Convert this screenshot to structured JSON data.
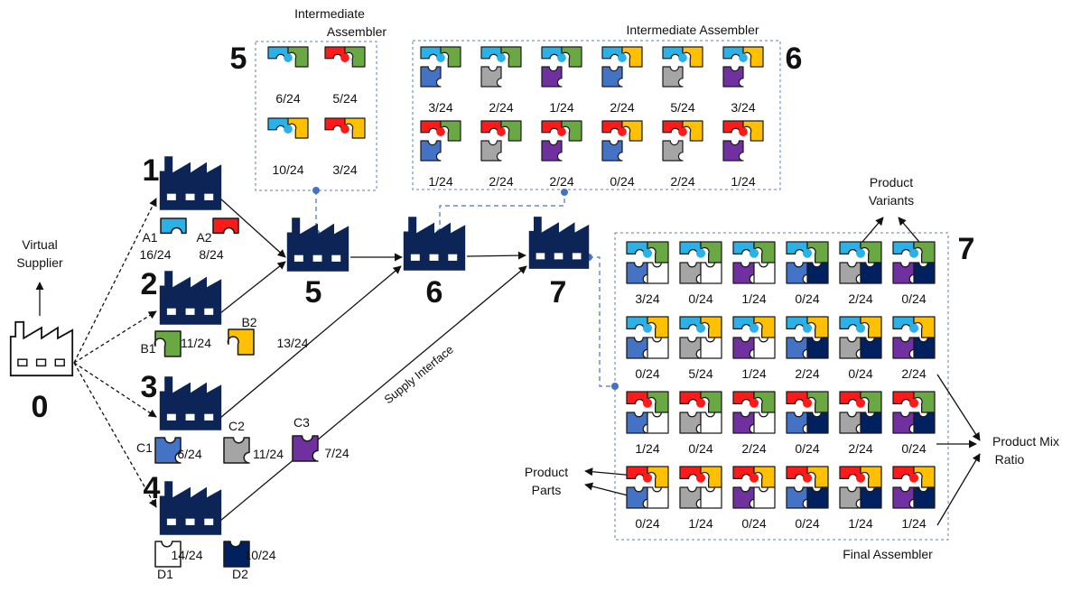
{
  "colors": {
    "navy": "#0d2456",
    "A1": "#29b1e8",
    "A2": "#ff1a1a",
    "B1": "#6aa843",
    "B2": "#ffc000",
    "C1": "#4472c4",
    "C2": "#a5a5a5",
    "C3": "#7030a0",
    "D1": "#ffffff",
    "D2": "#002060",
    "dashed_box": "#5b7fb5",
    "connector": "#4472c4"
  },
  "labels": {
    "virtual_supplier": [
      "Virtual",
      "Supplier"
    ],
    "intermediate_assembler_5": [
      "Intermediate",
      "Assembler"
    ],
    "intermediate_assembler_6": "Intermediate Assembler",
    "final_assembler": "Final Assembler",
    "product_variants": [
      "Product",
      "Variants"
    ],
    "product_mix_ratio": [
      "Product Mix",
      "Ratio"
    ],
    "product_parts": [
      "Product",
      "Parts"
    ],
    "supply_interface": "Supply Interface"
  },
  "nodes": [
    "0",
    "1",
    "2",
    "3",
    "4",
    "5",
    "6",
    "7"
  ],
  "suppliers": {
    "A1": {
      "name": "A1",
      "ratio": "16/24"
    },
    "A2": {
      "name": "A2",
      "ratio": "8/24"
    },
    "B1": {
      "name": "B1",
      "ratio": "11/24"
    },
    "B2": {
      "name": "B2",
      "ratio": "13/24"
    },
    "C1": {
      "name": "C1",
      "ratio": "6/24"
    },
    "C2": {
      "name": "C2",
      "ratio": "11/24"
    },
    "C3": {
      "name": "C3",
      "ratio": "7/24"
    },
    "D1": {
      "name": "D1",
      "ratio": "14/24"
    },
    "D2": {
      "name": "D2",
      "ratio": "10/24"
    }
  },
  "assembler5": {
    "number": "5",
    "items": [
      {
        "parts": [
          "A1",
          "B1"
        ],
        "ratio": "6/24"
      },
      {
        "parts": [
          "A2",
          "B1"
        ],
        "ratio": "5/24"
      },
      {
        "parts": [
          "A1",
          "B2"
        ],
        "ratio": "10/24"
      },
      {
        "parts": [
          "A2",
          "B2"
        ],
        "ratio": "3/24"
      }
    ]
  },
  "assembler6": {
    "number": "6",
    "items": [
      {
        "parts": [
          "A1",
          "B1",
          "C1"
        ],
        "ratio": "3/24"
      },
      {
        "parts": [
          "A1",
          "B1",
          "C2"
        ],
        "ratio": "2/24"
      },
      {
        "parts": [
          "A1",
          "B1",
          "C3"
        ],
        "ratio": "1/24"
      },
      {
        "parts": [
          "A1",
          "B2",
          "C1"
        ],
        "ratio": "2/24"
      },
      {
        "parts": [
          "A1",
          "B2",
          "C2"
        ],
        "ratio": "5/24"
      },
      {
        "parts": [
          "A1",
          "B2",
          "C3"
        ],
        "ratio": "3/24"
      },
      {
        "parts": [
          "A2",
          "B1",
          "C1"
        ],
        "ratio": "1/24"
      },
      {
        "parts": [
          "A2",
          "B1",
          "C2"
        ],
        "ratio": "2/24"
      },
      {
        "parts": [
          "A2",
          "B1",
          "C3"
        ],
        "ratio": "2/24"
      },
      {
        "parts": [
          "A2",
          "B2",
          "C1"
        ],
        "ratio": "0/24"
      },
      {
        "parts": [
          "A2",
          "B2",
          "C2"
        ],
        "ratio": "2/24"
      },
      {
        "parts": [
          "A2",
          "B2",
          "C3"
        ],
        "ratio": "1/24"
      }
    ]
  },
  "assembler7": {
    "number": "7",
    "items": [
      {
        "parts": [
          "A1",
          "B1",
          "C1",
          "D1"
        ],
        "ratio": "3/24"
      },
      {
        "parts": [
          "A1",
          "B1",
          "C2",
          "D1"
        ],
        "ratio": "0/24"
      },
      {
        "parts": [
          "A1",
          "B1",
          "C3",
          "D1"
        ],
        "ratio": "1/24"
      },
      {
        "parts": [
          "A1",
          "B1",
          "C1",
          "D2"
        ],
        "ratio": "0/24"
      },
      {
        "parts": [
          "A1",
          "B1",
          "C2",
          "D2"
        ],
        "ratio": "2/24"
      },
      {
        "parts": [
          "A1",
          "B1",
          "C3",
          "D2"
        ],
        "ratio": "0/24"
      },
      {
        "parts": [
          "A1",
          "B2",
          "C1",
          "D1"
        ],
        "ratio": "0/24"
      },
      {
        "parts": [
          "A1",
          "B2",
          "C2",
          "D1"
        ],
        "ratio": "5/24"
      },
      {
        "parts": [
          "A1",
          "B2",
          "C3",
          "D1"
        ],
        "ratio": "1/24"
      },
      {
        "parts": [
          "A1",
          "B2",
          "C1",
          "D2"
        ],
        "ratio": "2/24"
      },
      {
        "parts": [
          "A1",
          "B2",
          "C2",
          "D2"
        ],
        "ratio": "0/24"
      },
      {
        "parts": [
          "A1",
          "B2",
          "C3",
          "D2"
        ],
        "ratio": "2/24"
      },
      {
        "parts": [
          "A2",
          "B1",
          "C1",
          "D1"
        ],
        "ratio": "1/24"
      },
      {
        "parts": [
          "A2",
          "B1",
          "C2",
          "D1"
        ],
        "ratio": "0/24"
      },
      {
        "parts": [
          "A2",
          "B1",
          "C3",
          "D1"
        ],
        "ratio": "2/24"
      },
      {
        "parts": [
          "A2",
          "B1",
          "C1",
          "D2"
        ],
        "ratio": "0/24"
      },
      {
        "parts": [
          "A2",
          "B1",
          "C2",
          "D2"
        ],
        "ratio": "2/24"
      },
      {
        "parts": [
          "A2",
          "B1",
          "C3",
          "D2"
        ],
        "ratio": "0/24"
      },
      {
        "parts": [
          "A2",
          "B2",
          "C1",
          "D1"
        ],
        "ratio": "0/24"
      },
      {
        "parts": [
          "A2",
          "B2",
          "C2",
          "D1"
        ],
        "ratio": "1/24"
      },
      {
        "parts": [
          "A2",
          "B2",
          "C3",
          "D1"
        ],
        "ratio": "0/24"
      },
      {
        "parts": [
          "A2",
          "B2",
          "C1",
          "D2"
        ],
        "ratio": "0/24"
      },
      {
        "parts": [
          "A2",
          "B2",
          "C2",
          "D2"
        ],
        "ratio": "1/24"
      },
      {
        "parts": [
          "A2",
          "B2",
          "C3",
          "D2"
        ],
        "ratio": "1/24"
      }
    ]
  }
}
